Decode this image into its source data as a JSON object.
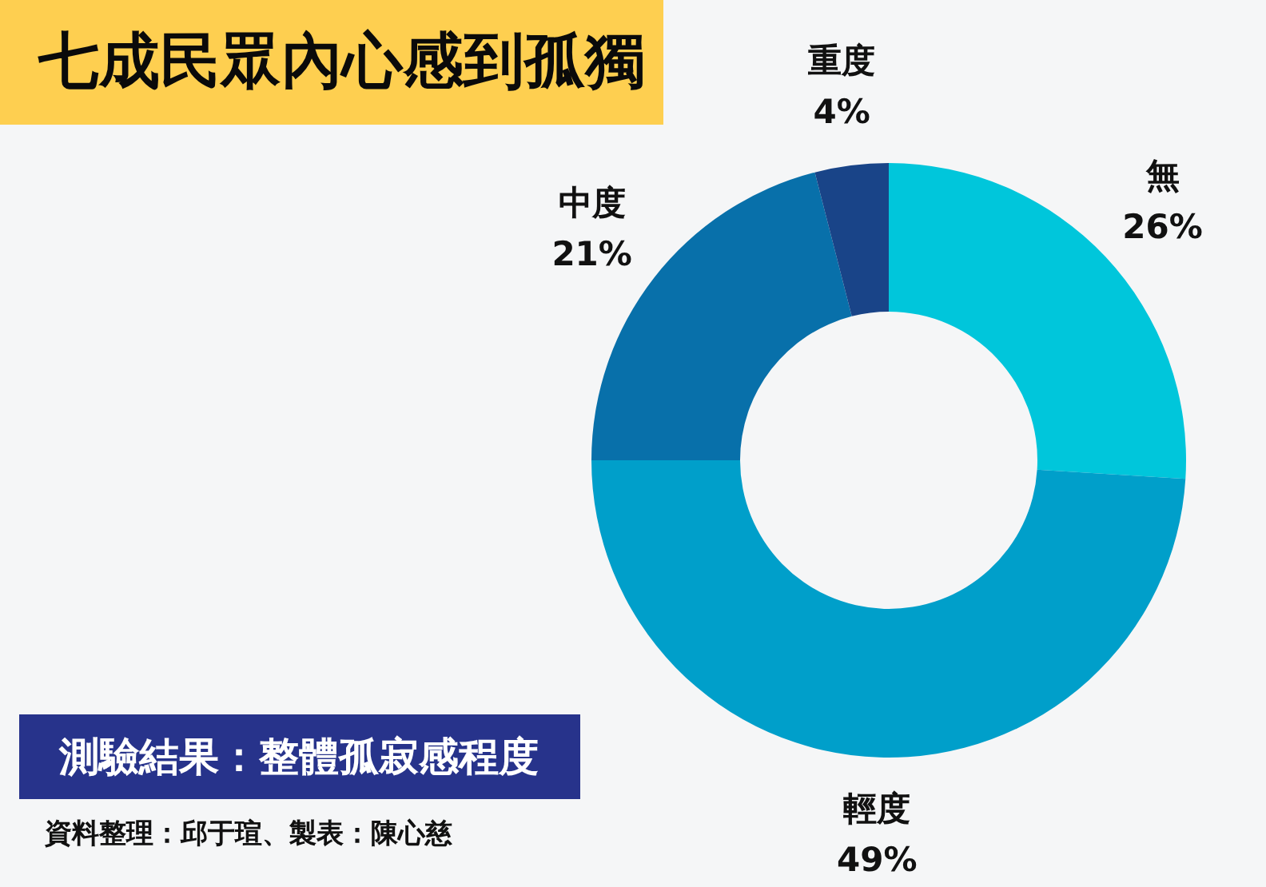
{
  "chart_data": {
    "type": "donut",
    "title": "七成民眾內心感到孤獨",
    "subtitle": "測驗結果：整體孤寂感程度",
    "annotations": [
      "資料整理：邱于瑄、製表：陳心慈"
    ],
    "categories": [
      "無",
      "輕度",
      "中度",
      "重度"
    ],
    "values": [
      26,
      49,
      21,
      4
    ],
    "colors": [
      "#00c6db",
      "#009fca",
      "#0870aa",
      "#194488"
    ],
    "value_labels": [
      "26%",
      "49%",
      "21%",
      "4%"
    ]
  }
}
